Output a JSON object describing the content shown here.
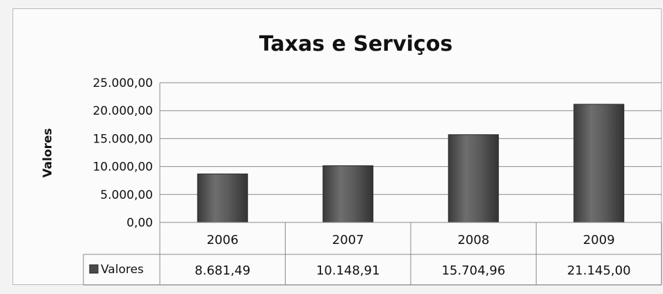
{
  "chart_data": {
    "type": "bar",
    "title": "Taxas e Serviços",
    "ylabel": "Valores",
    "xlabel": "",
    "categories": [
      "2006",
      "2007",
      "2008",
      "2009"
    ],
    "series": [
      {
        "name": "Valores",
        "values": [
          8681.49,
          10148.91,
          15704.96,
          21145.0
        ],
        "labels": [
          "8.681,49",
          "10.148,91",
          "15.704,96",
          "21.145,00"
        ]
      }
    ],
    "ylim": [
      0,
      25000
    ],
    "yticks": [
      0,
      5000,
      10000,
      15000,
      20000,
      25000
    ],
    "ytick_labels": [
      "0,00",
      "5.000,00",
      "10.000,00",
      "15.000,00",
      "20.000,00",
      "25.000,00"
    ],
    "grid": true,
    "legend_placement": "data-table",
    "bar_color": "#5a5a5a"
  }
}
